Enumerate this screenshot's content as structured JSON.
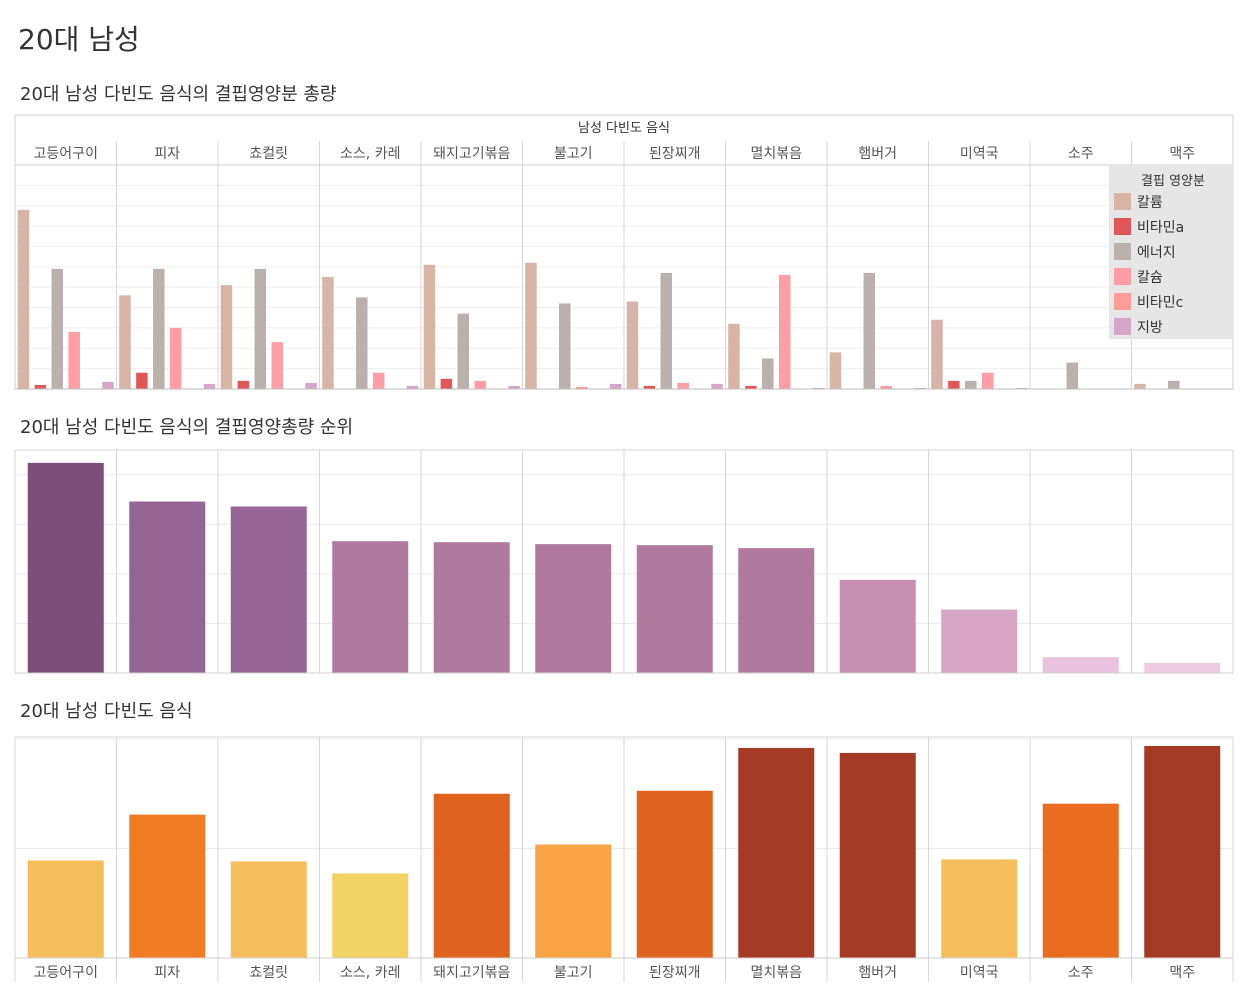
{
  "page": {
    "title": "20대 남성"
  },
  "chart1": {
    "title": "20대 남성 다빈도 음식의 결핍영양분 총량"
  },
  "chart2": {
    "title": "20대 남성 다빈도 음식의 결핍영양총량 순위"
  },
  "chart3": {
    "title": "20대 남성 다빈도 음식"
  },
  "chart_data": [
    {
      "type": "bar",
      "title": "20대 남성 다빈도 음식의 결핍영양분 총량",
      "xlabel": "남성 다빈도 음식",
      "categories": [
        "고등어구이",
        "피자",
        "쵸컬릿",
        "소스, 카레",
        "돼지고기볶음",
        "불고기",
        "된장찌개",
        "멸치볶음",
        "햄버거",
        "미역국",
        "소주",
        "맥주"
      ],
      "legend_title": "결핍 영양분",
      "legend_position": "top-right",
      "series": [
        {
          "name": "칼륨",
          "color": "#d7b5a6",
          "values": [
            88,
            46,
            51,
            55,
            61,
            62,
            43,
            32,
            18,
            34,
            0,
            2.5
          ]
        },
        {
          "name": "비타민a",
          "color": "#e15759",
          "values": [
            2,
            8,
            4,
            0,
            5,
            0,
            1.5,
            1.5,
            0,
            4,
            0,
            0
          ]
        },
        {
          "name": "에너지",
          "color": "#bab0ac",
          "values": [
            59,
            59,
            59,
            45,
            37,
            42,
            57,
            15,
            57,
            4,
            13,
            4
          ]
        },
        {
          "name": "칼슘",
          "color": "#ff9da7",
          "values": [
            28,
            30,
            23,
            8,
            4,
            1,
            3,
            56,
            1.5,
            8,
            0,
            0
          ]
        },
        {
          "name": "비타민c",
          "color": "#ff9d9a",
          "values": [
            0,
            0,
            0,
            0,
            0,
            0,
            0,
            0,
            0,
            0,
            0,
            0
          ]
        },
        {
          "name": "지방",
          "color": "#d4a6c8",
          "values": [
            3.5,
            2.5,
            3,
            1.5,
            1.5,
            2.5,
            2.5,
            0.5,
            0.5,
            0.5,
            0,
            0
          ]
        }
      ],
      "ylim": [
        0,
        110
      ],
      "grid": true
    },
    {
      "type": "bar",
      "title": "20대 남성 다빈도 음식의 결핍영양총량 순위",
      "categories": [
        "고등어구이",
        "피자",
        "쵸컬릿",
        "소스, 카레",
        "돼지고기볶음",
        "불고기",
        "된장찌개",
        "멸치볶음",
        "햄버거",
        "미역국",
        "소주",
        "맥주"
      ],
      "values": [
        212,
        173,
        168,
        133,
        132,
        130,
        129,
        126,
        94,
        64,
        16,
        10
      ],
      "colors": [
        "#7c4e7a",
        "#956593",
        "#956593",
        "#b07a9f",
        "#b07a9f",
        "#b07a9f",
        "#b07a9f",
        "#b07a9f",
        "#c68eb1",
        "#d7a6c5",
        "#e9c3dd",
        "#eccae0"
      ],
      "ylim": [
        0,
        225
      ],
      "grid": true
    },
    {
      "type": "bar",
      "title": "20대 남성 다빈도 음식",
      "categories": [
        "고등어구이",
        "피자",
        "쵸컬릿",
        "소스, 카레",
        "돼지고기볶음",
        "불고기",
        "된장찌개",
        "멸치볶음",
        "햄버거",
        "미역국",
        "소주",
        "맥주"
      ],
      "values": [
        98,
        144,
        97,
        85,
        165,
        114,
        168,
        211,
        206,
        99,
        155,
        213
      ],
      "colors": [
        "#f6be5b",
        "#f07c24",
        "#f6be5b",
        "#f2d265",
        "#e0621f",
        "#f8a444",
        "#e0621f",
        "#a53a24",
        "#a53a24",
        "#f6be5b",
        "#ea6d1f",
        "#a53a24"
      ],
      "ylim": [
        0,
        222
      ],
      "grid": true
    }
  ]
}
